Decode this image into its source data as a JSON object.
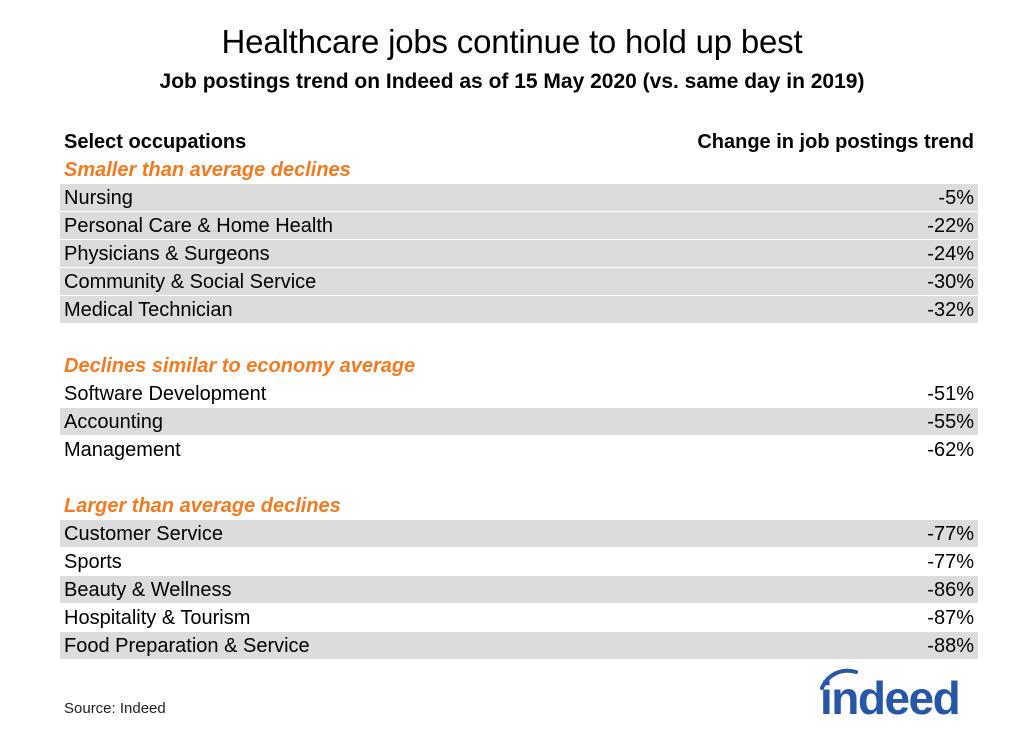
{
  "title": "Healthcare jobs continue to hold up best",
  "subtitle": "Job postings trend on Indeed as of 15 May 2020 (vs. same day in 2019)",
  "source": "Source: Indeed",
  "logo_text": "indeed",
  "colors": {
    "group_label": "#f47b20",
    "row_shade": "#dcdcdc",
    "logo": "#2557a7"
  },
  "chart_data": {
    "type": "table",
    "columns": [
      "Select occupations",
      "Change in job postings trend"
    ],
    "groups": [
      {
        "label": "Smaller than average declines",
        "rows": [
          {
            "occupation": "Nursing",
            "change": "-5%"
          },
          {
            "occupation": "Personal Care & Home Health",
            "change": "-22%"
          },
          {
            "occupation": "Physicians & Surgeons",
            "change": "-24%"
          },
          {
            "occupation": "Community & Social Service",
            "change": "-30%"
          },
          {
            "occupation": "Medical Technician",
            "change": "-32%"
          }
        ]
      },
      {
        "label": "Declines similar to economy average",
        "rows": [
          {
            "occupation": "Software Development",
            "change": "-51%"
          },
          {
            "occupation": "Accounting",
            "change": "-55%"
          },
          {
            "occupation": "Management",
            "change": "-62%"
          }
        ]
      },
      {
        "label": "Larger than average declines",
        "rows": [
          {
            "occupation": "Customer Service",
            "change": "-77%"
          },
          {
            "occupation": "Sports",
            "change": "-77%"
          },
          {
            "occupation": "Beauty & Wellness",
            "change": "-86%"
          },
          {
            "occupation": "Hospitality & Tourism",
            "change": "-87%"
          },
          {
            "occupation": "Food Preparation & Service",
            "change": "-88%"
          }
        ]
      }
    ]
  }
}
